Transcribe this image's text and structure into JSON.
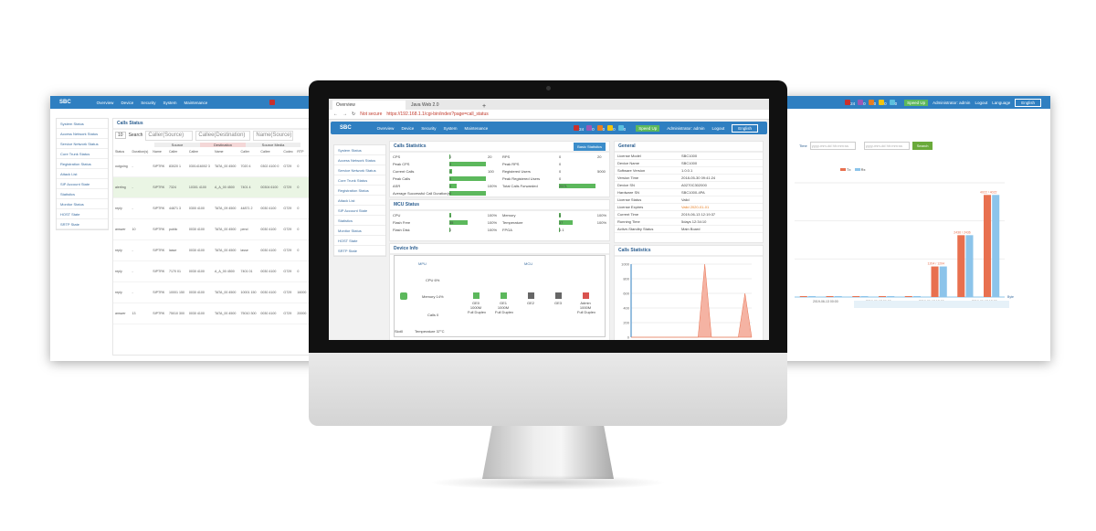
{
  "app": {
    "logo": "SBC",
    "nav": [
      "Overview",
      "Device",
      "Security",
      "System",
      "Maintenance"
    ],
    "alarms": [
      {
        "count": "24",
        "color": "#c9302c"
      },
      {
        "count": "0",
        "color": "#9b59b6"
      },
      {
        "count": "0",
        "color": "#e67e22"
      },
      {
        "count": "0",
        "color": "#f1c40f"
      },
      {
        "count": "0",
        "color": "#5bc0de"
      }
    ],
    "speedup": "Speed Up",
    "user": "Administrator: admin",
    "logout": "Logout",
    "language_label": "Language",
    "language": "English"
  },
  "browser": {
    "tabs": [
      "Overview",
      "Java Web 2.0"
    ],
    "not_secure": "Not secure",
    "url": "https://192.168.1.1/cgi-bin/index?page=call_status"
  },
  "sidebar": [
    "System Status",
    "Access Network Status",
    "Service Network Status",
    "Core Trunk Status",
    "Registration Status",
    "Attack List",
    "SIP Account State",
    "Statistics",
    "Monitor Status",
    "HOST State",
    "SRTP State"
  ],
  "calls_stats": {
    "title": "Calls Statistics",
    "button": "Basic Statistics",
    "left": [
      {
        "label": "CPS",
        "value": "0",
        "max": "20",
        "fill": 0
      },
      {
        "label": "Peak CPS",
        "value": "0",
        "max": "",
        "fill": 1
      },
      {
        "label": "Current Calls",
        "value": "0",
        "max": "100",
        "fill": 0.08
      },
      {
        "label": "Peak Calls",
        "value": "0",
        "max": "",
        "fill": 1
      },
      {
        "label": "ASR",
        "value": "0",
        "max": "100%",
        "fill": 0.2
      },
      {
        "label": "Average Successful Call Duration(s)",
        "value": "0",
        "max": "",
        "fill": 1
      }
    ],
    "right": [
      {
        "label": "RPS",
        "value": "0",
        "max": "20"
      },
      {
        "label": "Peak RPS",
        "value": "0",
        "max": ""
      },
      {
        "label": "Registered Users",
        "value": "0",
        "max": "5000"
      },
      {
        "label": "Peak Registered Users",
        "value": "0",
        "max": ""
      },
      {
        "label": "Total Calls Forwarded",
        "value": "2571",
        "max": ""
      }
    ]
  },
  "mcu": {
    "title": "MCU Status",
    "rows": [
      {
        "label": "CPU",
        "value": "1",
        "max": "100%",
        "fill": 0.05
      },
      {
        "label": "Memory",
        "value": "5",
        "max": "100%",
        "fill": 0.06
      },
      {
        "label": "Flash Free",
        "value": "35",
        "max": "100%",
        "fill": 0.5
      },
      {
        "label": "Temperature",
        "value": "37",
        "max": "100%",
        "fill": 0.37
      },
      {
        "label": "Flash Disk",
        "value": "0",
        "max": "100%",
        "fill": 0
      },
      {
        "label": "FPGA",
        "value": "0.1",
        "max": "",
        "fill": 0
      }
    ]
  },
  "general": {
    "title": "General",
    "rows": [
      [
        "License Model",
        "SBC1000"
      ],
      [
        "Device Name",
        "SBC1000"
      ],
      [
        "Software Version",
        "1.0.0.1"
      ],
      [
        "Version Time",
        "2018-05-30 09:41:24"
      ],
      [
        "Device SN",
        "A0270C302000"
      ],
      [
        "Hardware SN",
        "SBC1000-4PA"
      ],
      [
        "License Status",
        "Valid"
      ],
      [
        "License Expires",
        "Valid 2020-01-01"
      ],
      [
        "Current Time",
        "2019-06-13 12:19:37"
      ],
      [
        "Running Time",
        "5days 12:34:10"
      ],
      [
        "Active-Standby Status",
        "Main Board"
      ]
    ]
  },
  "device": {
    "title": "Device Info",
    "mpu": "MPU",
    "mcu": "MCU",
    "cpu": "CPU 6%",
    "memory": "Memory 14%",
    "calls": "Calls 0",
    "ports": [
      {
        "name": "GE0",
        "speed": "1000M",
        "duplex": "Full Duplex",
        "state": "up"
      },
      {
        "name": "GE1",
        "speed": "1000M",
        "duplex": "Full Duplex",
        "state": "up"
      },
      {
        "name": "GE2",
        "speed": "",
        "duplex": "",
        "state": "down"
      },
      {
        "name": "GE3",
        "speed": "",
        "duplex": "",
        "state": "down"
      },
      {
        "name": "Admin",
        "speed": "1000M",
        "duplex": "Full Duplex",
        "state": "alarm"
      }
    ],
    "board": "Slot0",
    "temp": "Temperature 37°C"
  },
  "calls_chart": {
    "title": "Calls Statistics",
    "yticks": [
      "1000",
      "800",
      "600",
      "400",
      "200",
      "0"
    ],
    "ylim": [
      0,
      1000
    ],
    "values": [
      0,
      0,
      0,
      0,
      0,
      0,
      0,
      0,
      0,
      0,
      0,
      1000,
      0,
      0,
      0,
      0,
      0,
      600,
      0
    ]
  },
  "left_panel": {
    "title": "Calls Status",
    "page_size": "10",
    "search": "Search",
    "filters": [
      "Caller(Source)",
      "Callee(Destination)",
      "Name(Source)"
    ],
    "groups": [
      "Source",
      "Destination",
      "Source Media"
    ],
    "headers": [
      "Status",
      "Duration(s)",
      "Name",
      "Caller",
      "Callee",
      "Name",
      "Caller",
      "Callee",
      "Codec",
      "RTP",
      "IP"
    ],
    "rows": [
      [
        "outgoing",
        "-",
        "SIPTRK",
        "83020 1",
        "0301416002 3",
        "TATA_00 4500",
        "7020 4",
        "0302 4100 0",
        "G729",
        "0",
        "0.0.0.0"
      ],
      [
        "alerting",
        "-",
        "SIPTRK",
        "7324",
        "10301 4100",
        "A_A_00 4500",
        "7401 4",
        "00304 6100",
        "G729",
        "0",
        "192.168.1.3"
      ],
      [
        "reply",
        "-",
        "SIPTRK",
        "44871 3",
        "0300 4100",
        "TATA_09 4500",
        "44871 2",
        "0030 4100",
        "G729",
        "0",
        "192.168.1.3"
      ],
      [
        "answer",
        "10",
        "SIPTRK",
        "public",
        "0030 4100",
        "TATA_00 4500",
        "pend",
        "0030 4100",
        "G729",
        "0",
        "192.168.1.3"
      ],
      [
        "reply",
        "-",
        "SIPTRK",
        "lasse",
        "0030 4100",
        "TATA_00 4500",
        "lasse",
        "0030 4100",
        "G729",
        "0",
        "192.168.1.3"
      ],
      [
        "reply",
        "-",
        "SIPTRK",
        "7170 01",
        "0030 4100",
        "A_A_00 4500",
        "7401 01",
        "0030 4100",
        "G729",
        "0",
        "192.168.1.3"
      ],
      [
        "reply",
        "-",
        "SIPTRK",
        "10001 150",
        "0030 4100",
        "TATA_00 4500",
        "10001 150",
        "0030 4100",
        "G729",
        "16000",
        "192.168.1.3"
      ],
      [
        "answer",
        "13",
        "SIPTRK",
        "75010 300",
        "0030 4100",
        "TATA_00 4500",
        "75010 300",
        "0030 4100",
        "G729",
        "20000",
        "192.168.1.3"
      ]
    ]
  },
  "right_panel": {
    "time_label": "Time",
    "start_placeholder": "yyyy-mm-dd hh:mm:ss",
    "end_placeholder": "yyyy-mm-dd hh:mm:ss",
    "query": "Search",
    "legend": [
      "Tx",
      "Rx"
    ],
    "colors": [
      "#e8704f",
      "#8cc4ea"
    ],
    "xticks": [
      "2019-06-13 00:00",
      "2019-06-13 06:00",
      "2019-06-13 12:00",
      "2019-06-13 18:00"
    ],
    "unit": "Byte",
    "tx": [
      0,
      0,
      0,
      0,
      0,
      1204,
      2436,
      4022
    ],
    "rx": [
      0,
      0,
      0,
      0,
      0,
      1204,
      2436,
      4022
    ],
    "labels": [
      "",
      "",
      "",
      "",
      "",
      "1204 / 1204",
      "2436 / 2436",
      "4022 / 4022"
    ]
  }
}
